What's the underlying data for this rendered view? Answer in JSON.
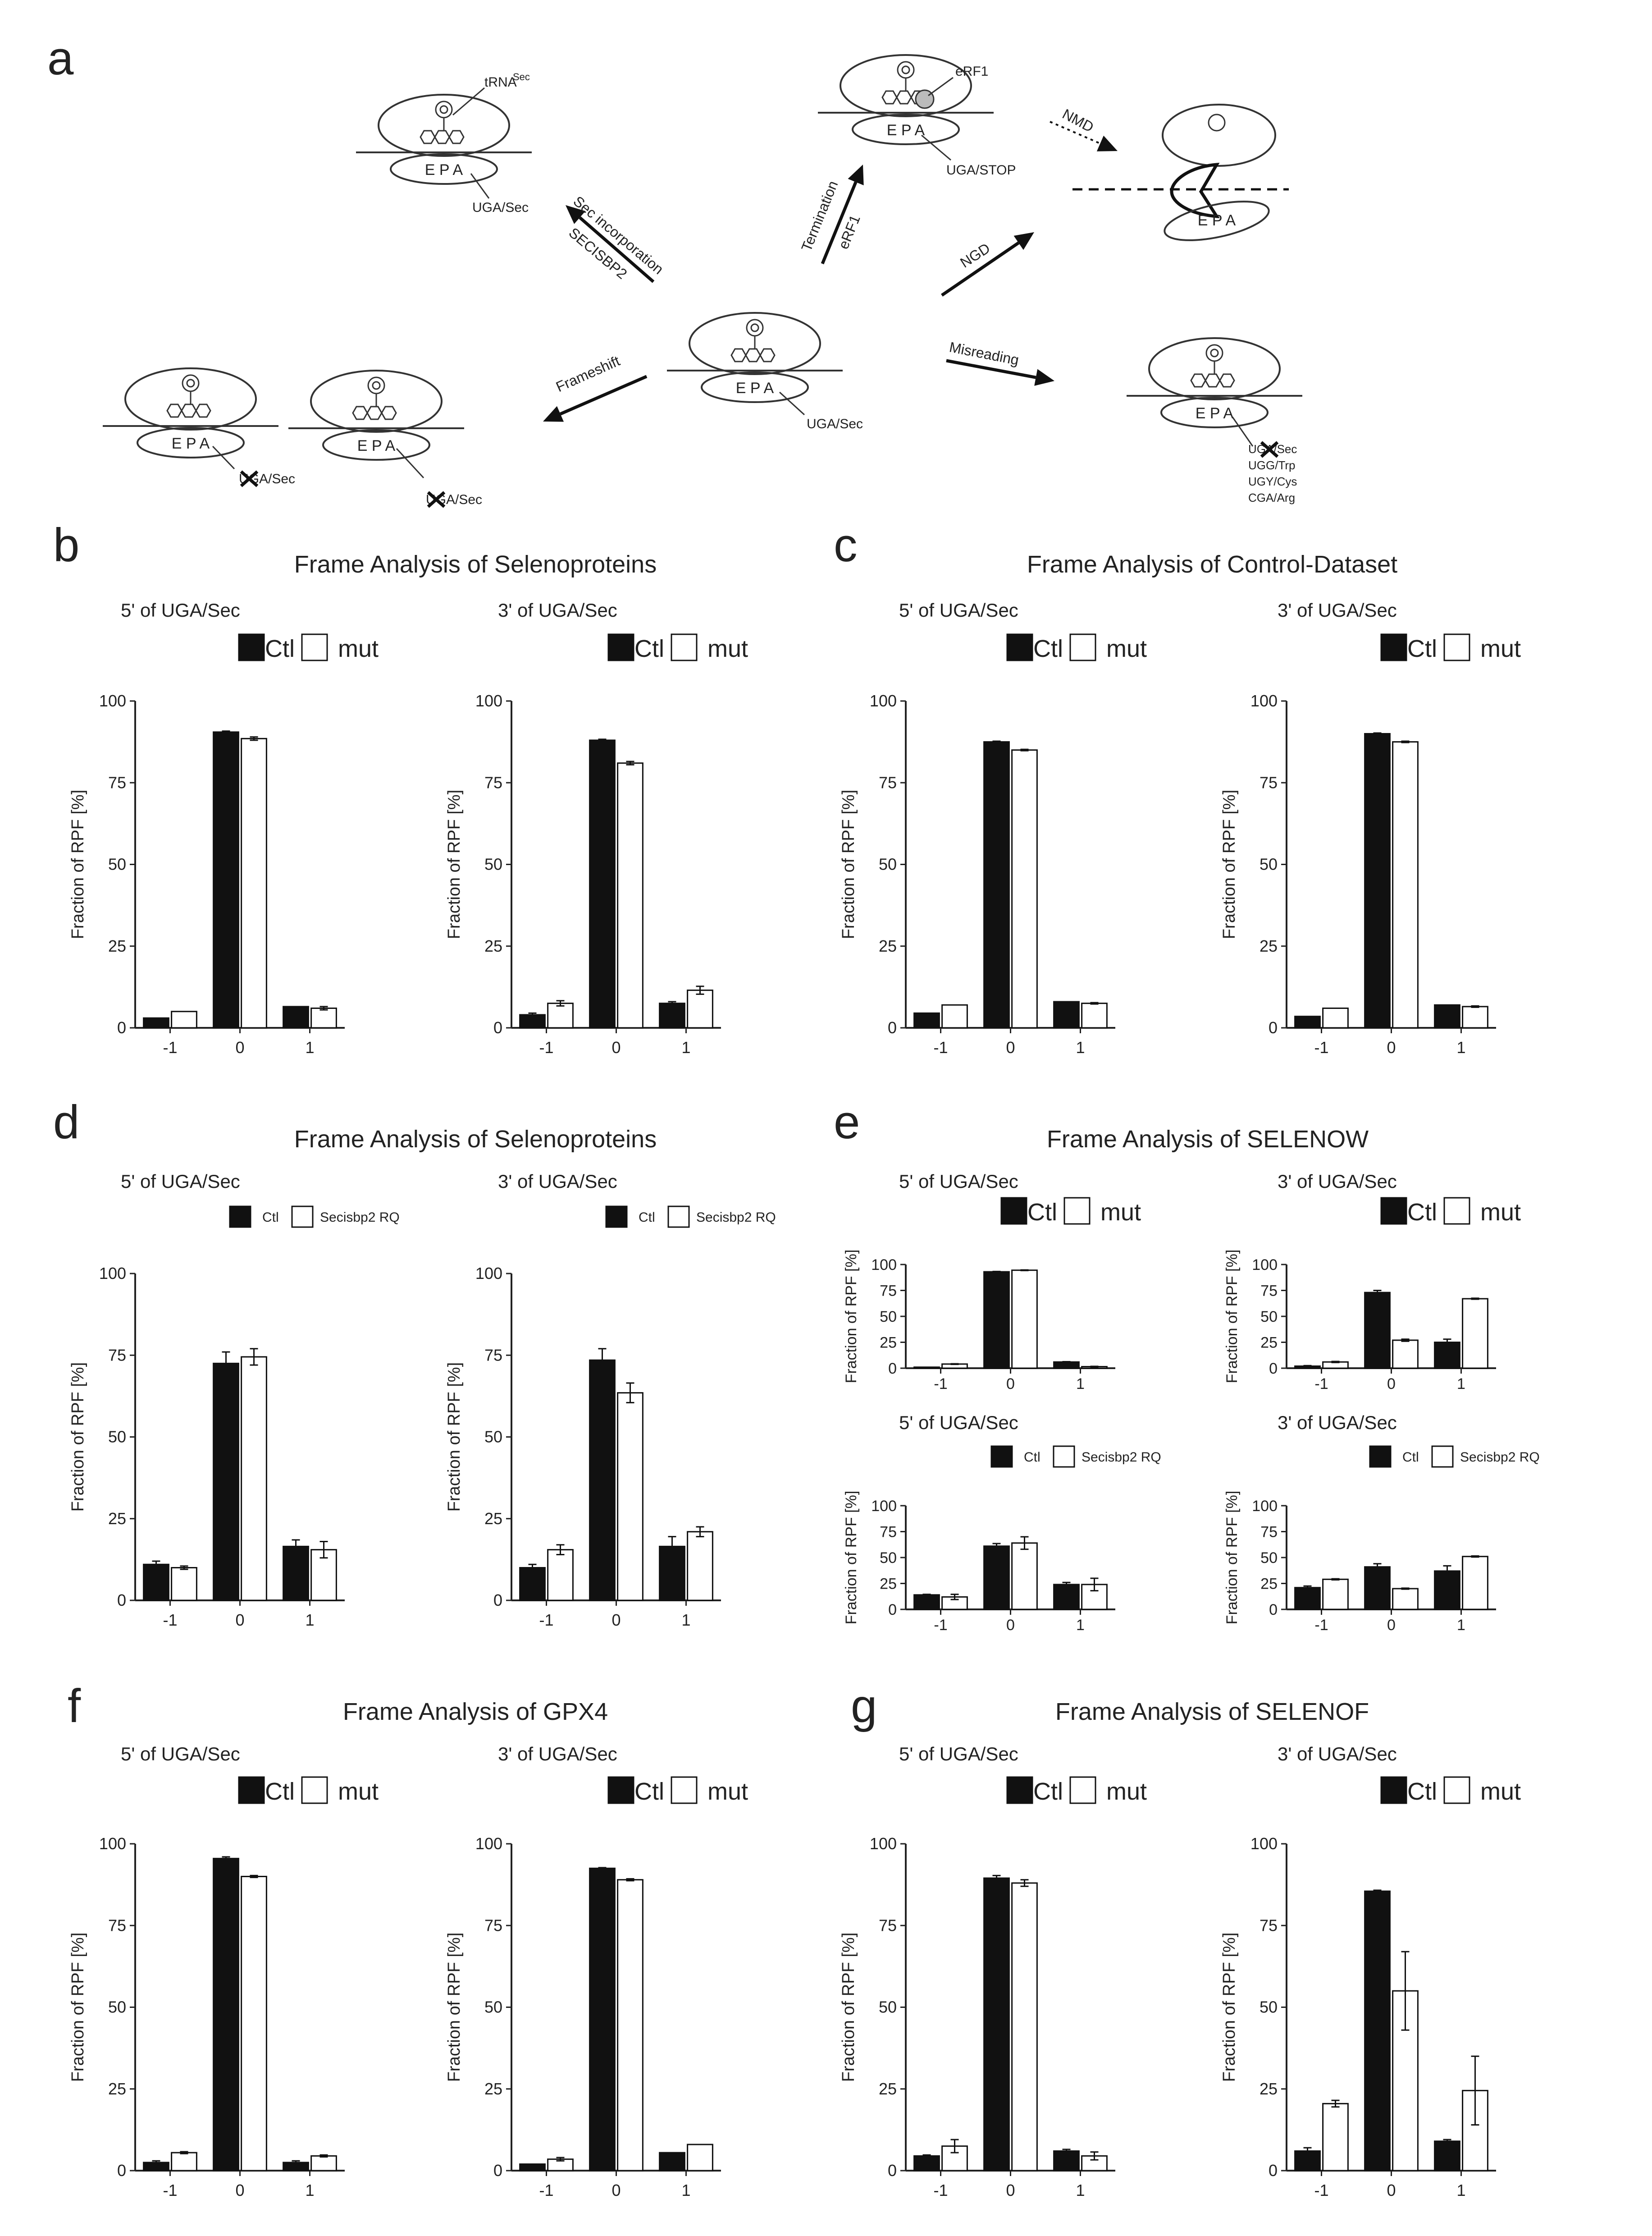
{
  "figure_labels": [
    "a",
    "b",
    "c",
    "d",
    "e",
    "f",
    "g"
  ],
  "diagram": {
    "center_codon": "UGA/Sec",
    "site_labels": "E P A",
    "sec": {
      "arrow1": "Sec incorporation",
      "arrow2": "SECISBP2",
      "trna": "tRNA",
      "trna_sup": "Sec",
      "codon": "UGA/Sec"
    },
    "term": {
      "arrow1": "Termination",
      "arrow2": "eRF1",
      "factor": "eRF1",
      "codon": "UGA/STOP"
    },
    "nmd": "NMD",
    "ngd": "NGD",
    "frameshift": {
      "arrow": "Frameshift",
      "codon1": "UGA/Sec",
      "codon2": "UGA/Sec"
    },
    "misreading": {
      "arrow": "Misreading",
      "codons": [
        "UGA/Sec",
        "UGG/Trp",
        "UGY/Cys",
        "CGA/Arg"
      ]
    }
  },
  "chart_data": [
    {
      "id": "b",
      "title": "Frame Analysis of Selenoproteins",
      "subplots": [
        {
          "subtitle": "5' of UGA/Sec",
          "type": "bar",
          "legend": [
            "Ctl",
            "mut"
          ],
          "ylabel": "Fraction of RPF [%]",
          "ylim": [
            0,
            100
          ],
          "yticks": [
            0,
            25,
            50,
            75,
            100
          ],
          "categories": [
            "-1",
            "0",
            "1"
          ],
          "series": [
            {
              "name": "Ctl",
              "values": [
                3,
                90.5,
                6.5
              ],
              "err": [
                0,
                0.3,
                0
              ]
            },
            {
              "name": "mut",
              "values": [
                5,
                88.5,
                6
              ],
              "err": [
                0,
                0.5,
                0.5
              ]
            }
          ]
        },
        {
          "subtitle": "3' of UGA/Sec",
          "type": "bar",
          "legend": [
            "Ctl",
            "mut"
          ],
          "ylabel": "Fraction of RPF [%]",
          "ylim": [
            0,
            100
          ],
          "yticks": [
            0,
            25,
            50,
            75,
            100
          ],
          "categories": [
            "-1",
            "0",
            "1"
          ],
          "series": [
            {
              "name": "Ctl",
              "values": [
                4,
                88,
                7.5
              ],
              "err": [
                0.5,
                0.3,
                0.5
              ]
            },
            {
              "name": "mut",
              "values": [
                7.5,
                81,
                11.5
              ],
              "err": [
                0.8,
                0.5,
                1.2
              ]
            }
          ]
        }
      ]
    },
    {
      "id": "c",
      "title": "Frame Analysis of Control-Dataset",
      "subplots": [
        {
          "subtitle": "5' of UGA/Sec",
          "type": "bar",
          "legend": [
            "Ctl",
            "mut"
          ],
          "ylabel": "Fraction of RPF [%]",
          "ylim": [
            0,
            100
          ],
          "yticks": [
            0,
            25,
            50,
            75,
            100
          ],
          "categories": [
            "-1",
            "0",
            "1"
          ],
          "series": [
            {
              "name": "Ctl",
              "values": [
                4.5,
                87.5,
                8
              ],
              "err": [
                0,
                0.2,
                0
              ]
            },
            {
              "name": "mut",
              "values": [
                7,
                85,
                7.5
              ],
              "err": [
                0,
                0.2,
                0.2
              ]
            }
          ]
        },
        {
          "subtitle": "3' of UGA/Sec",
          "type": "bar",
          "legend": [
            "Ctl",
            "mut"
          ],
          "ylabel": "Fraction of RPF [%]",
          "ylim": [
            0,
            100
          ],
          "yticks": [
            0,
            25,
            50,
            75,
            100
          ],
          "categories": [
            "-1",
            "0",
            "1"
          ],
          "series": [
            {
              "name": "Ctl",
              "values": [
                3.5,
                90,
                7
              ],
              "err": [
                0,
                0.2,
                0
              ]
            },
            {
              "name": "mut",
              "values": [
                6,
                87.5,
                6.5
              ],
              "err": [
                0,
                0.2,
                0.2
              ]
            }
          ]
        }
      ]
    },
    {
      "id": "d",
      "title": "Frame Analysis of Selenoproteins",
      "subplots": [
        {
          "subtitle": "5' of UGA/Sec",
          "type": "bar",
          "legend": [
            "Ctl",
            "Secisbp2 RQ"
          ],
          "ylabel": "Fraction of RPF [%]",
          "ylim": [
            0,
            100
          ],
          "yticks": [
            0,
            25,
            50,
            75,
            100
          ],
          "categories": [
            "-1",
            "0",
            "1"
          ],
          "series": [
            {
              "name": "Ctl",
              "values": [
                11,
                72.5,
                16.5
              ],
              "err": [
                1,
                3.5,
                2
              ]
            },
            {
              "name": "Secisbp2 RQ",
              "values": [
                10,
                74.5,
                15.5
              ],
              "err": [
                0.5,
                2.5,
                2.5
              ]
            }
          ]
        },
        {
          "subtitle": "3' of UGA/Sec",
          "type": "bar",
          "legend": [
            "Ctl",
            "Secisbp2 RQ"
          ],
          "ylabel": "Fraction of RPF [%]",
          "ylim": [
            0,
            100
          ],
          "yticks": [
            0,
            25,
            50,
            75,
            100
          ],
          "categories": [
            "-1",
            "0",
            "1"
          ],
          "series": [
            {
              "name": "Ctl",
              "values": [
                10,
                73.5,
                16.5
              ],
              "err": [
                1,
                3.5,
                3
              ]
            },
            {
              "name": "Secisbp2 RQ",
              "values": [
                15.5,
                63.5,
                21
              ],
              "err": [
                1.5,
                3,
                1.5
              ]
            }
          ]
        }
      ]
    },
    {
      "id": "e",
      "title": "Frame Analysis of SELENOW",
      "subplots": [
        {
          "subtitle": "5' of UGA/Sec",
          "type": "bar",
          "legend": [
            "Ctl",
            "mut"
          ],
          "ylabel": "Fraction of RPF [%]",
          "ylim": [
            0,
            100
          ],
          "yticks": [
            0,
            25,
            50,
            75,
            100
          ],
          "categories": [
            "-1",
            "0",
            "1"
          ],
          "series": [
            {
              "name": "Ctl",
              "values": [
                1,
                93,
                6
              ],
              "err": [
                0,
                0.3,
                0.3
              ]
            },
            {
              "name": "mut",
              "values": [
                4,
                94.5,
                1.5
              ],
              "err": [
                0.3,
                0.3,
                0.3
              ]
            }
          ]
        },
        {
          "subtitle": "3' of UGA/Sec",
          "type": "bar",
          "legend": [
            "Ctl",
            "mut"
          ],
          "ylabel": "Fraction of RPF [%]",
          "ylim": [
            0,
            100
          ],
          "yticks": [
            0,
            25,
            50,
            75,
            100
          ],
          "categories": [
            "-1",
            "0",
            "1"
          ],
          "series": [
            {
              "name": "Ctl",
              "values": [
                2,
                73,
                25
              ],
              "err": [
                0.5,
                2,
                3
              ]
            },
            {
              "name": "mut",
              "values": [
                6,
                27,
                67
              ],
              "err": [
                0.5,
                1,
                0.5
              ]
            }
          ]
        },
        {
          "subtitle": "5' of UGA/Sec",
          "type": "bar",
          "legend": [
            "Ctl",
            "Secisbp2 RQ"
          ],
          "ylabel": "Fraction of RPF [%]",
          "ylim": [
            0,
            100
          ],
          "yticks": [
            0,
            25,
            50,
            75,
            100
          ],
          "categories": [
            "-1",
            "0",
            "1"
          ],
          "series": [
            {
              "name": "Ctl",
              "values": [
                14,
                61,
                24
              ],
              "err": [
                0.5,
                2.5,
                2
              ]
            },
            {
              "name": "Secisbp2 RQ",
              "values": [
                12,
                64,
                24
              ],
              "err": [
                2.5,
                6,
                6
              ]
            }
          ]
        },
        {
          "subtitle": "3' of UGA/Sec",
          "type": "bar",
          "legend": [
            "Ctl",
            "Secisbp2 RQ"
          ],
          "ylabel": "Fraction of RPF [%]",
          "ylim": [
            0,
            100
          ],
          "yticks": [
            0,
            25,
            50,
            75,
            100
          ],
          "categories": [
            "-1",
            "0",
            "1"
          ],
          "series": [
            {
              "name": "Ctl",
              "values": [
                21,
                41,
                37
              ],
              "err": [
                1.5,
                3,
                5
              ]
            },
            {
              "name": "Secisbp2 RQ",
              "values": [
                29,
                20,
                51
              ],
              "err": [
                0.5,
                0.5,
                0.5
              ]
            }
          ]
        }
      ]
    },
    {
      "id": "f",
      "title": "Frame Analysis of GPX4",
      "subplots": [
        {
          "subtitle": "5' of UGA/Sec",
          "type": "bar",
          "legend": [
            "Ctl",
            "mut"
          ],
          "ylabel": "Fraction of RPF [%]",
          "ylim": [
            0,
            100
          ],
          "yticks": [
            0,
            25,
            50,
            75,
            100
          ],
          "categories": [
            "-1",
            "0",
            "1"
          ],
          "series": [
            {
              "name": "Ctl",
              "values": [
                2.5,
                95.5,
                2.5
              ],
              "err": [
                0.5,
                0.5,
                0.5
              ]
            },
            {
              "name": "mut",
              "values": [
                5.5,
                90,
                4.5
              ],
              "err": [
                0.3,
                0.3,
                0.3
              ]
            }
          ]
        },
        {
          "subtitle": "3' of UGA/Sec",
          "type": "bar",
          "legend": [
            "Ctl",
            "mut"
          ],
          "ylabel": "Fraction of RPF [%]",
          "ylim": [
            0,
            100
          ],
          "yticks": [
            0,
            25,
            50,
            75,
            100
          ],
          "categories": [
            "-1",
            "0",
            "1"
          ],
          "series": [
            {
              "name": "Ctl",
              "values": [
                2,
                92.5,
                5.5
              ],
              "err": [
                0,
                0.2,
                0
              ]
            },
            {
              "name": "mut",
              "values": [
                3.5,
                89,
                8
              ],
              "err": [
                0.5,
                0.3,
                0
              ]
            }
          ]
        }
      ]
    },
    {
      "id": "g",
      "title": "Frame Analysis of SELENOF",
      "subplots": [
        {
          "subtitle": "5' of UGA/Sec",
          "type": "bar",
          "legend": [
            "Ctl",
            "mut"
          ],
          "ylabel": "Fraction of RPF [%]",
          "ylim": [
            0,
            100
          ],
          "yticks": [
            0,
            25,
            50,
            75,
            100
          ],
          "categories": [
            "-1",
            "0",
            "1"
          ],
          "series": [
            {
              "name": "Ctl",
              "values": [
                4.5,
                89.5,
                6
              ],
              "err": [
                0.3,
                0.8,
                0.5
              ]
            },
            {
              "name": "mut",
              "values": [
                7.5,
                88,
                4.5
              ],
              "err": [
                2,
                1,
                1.2
              ]
            }
          ]
        },
        {
          "subtitle": "3' of UGA/Sec",
          "type": "bar",
          "legend": [
            "Ctl",
            "mut"
          ],
          "ylabel": "Fraction of RPF [%]",
          "ylim": [
            0,
            100
          ],
          "yticks": [
            0,
            25,
            50,
            75,
            100
          ],
          "categories": [
            "-1",
            "0",
            "1"
          ],
          "series": [
            {
              "name": "Ctl",
              "values": [
                6,
                85.5,
                9
              ],
              "err": [
                1,
                0.3,
                0.5
              ]
            },
            {
              "name": "mut",
              "values": [
                20.5,
                55,
                24.5
              ],
              "err": [
                1,
                12,
                10.5
              ]
            }
          ]
        }
      ]
    }
  ]
}
